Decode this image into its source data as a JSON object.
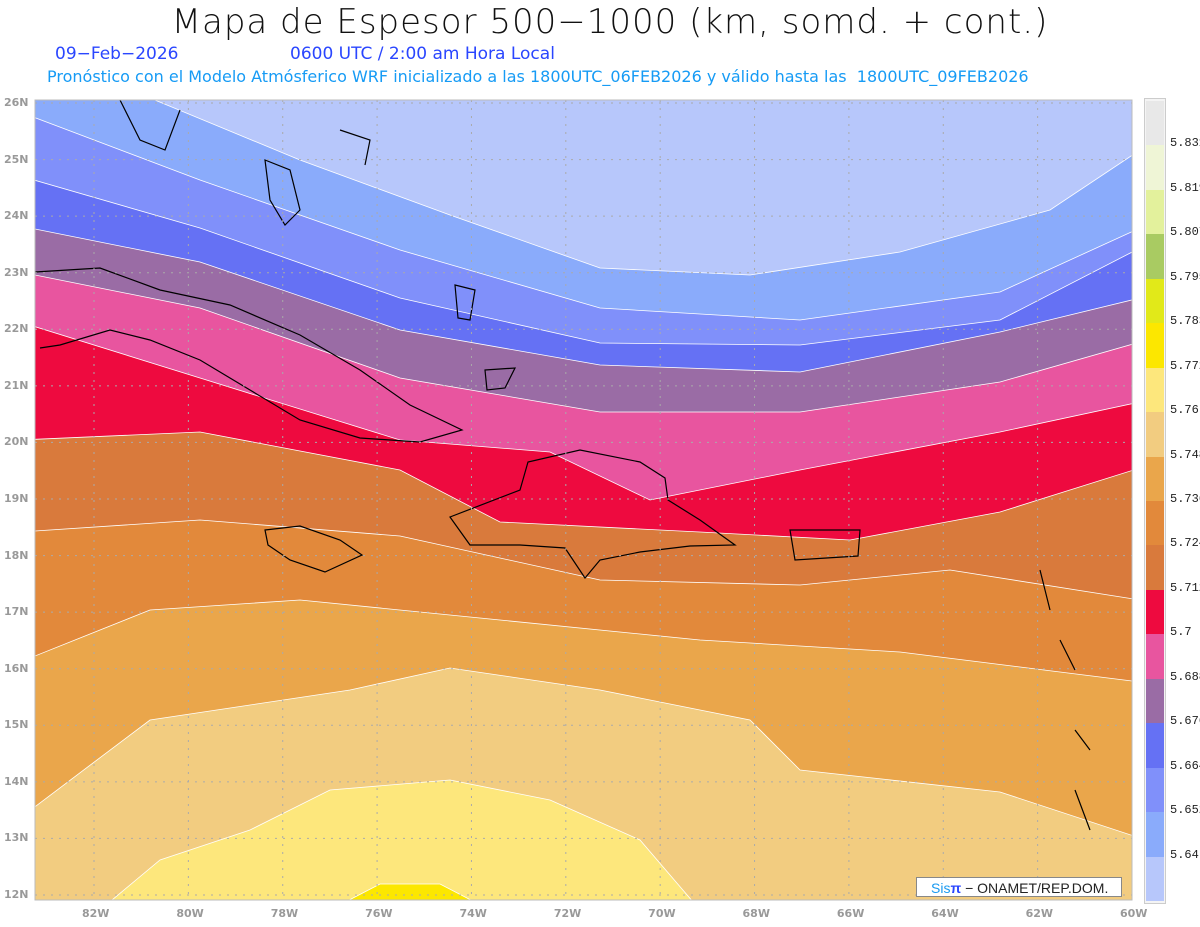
{
  "header": {
    "title": "Mapa de Espesor 500−1000 (km, somd. + cont.)",
    "date": "09−Feb−2026",
    "time": "0600 UTC / 2:00 am Hora Local",
    "forecast": "Pronóstico con el Modelo Atmósferico WRF inicializado a las 1800UTC_06FEB2026 y válido hasta las  1800UTC_09FEB2026"
  },
  "axes": {
    "lat_labels": [
      "26N",
      "25N",
      "24N",
      "23N",
      "22N",
      "21N",
      "20N",
      "19N",
      "18N",
      "17N",
      "16N",
      "15N",
      "14N",
      "13N",
      "12N"
    ],
    "lon_labels": [
      "82W",
      "80W",
      "78W",
      "76W",
      "74W",
      "72W",
      "70W",
      "68W",
      "66W",
      "64W",
      "62W",
      "60W"
    ]
  },
  "colorbar": {
    "colors": [
      "#e8e8e8",
      "#eff5d6",
      "#e3f19c",
      "#a9cb62",
      "#e1e919",
      "#fce700",
      "#fde77c",
      "#f2cc80",
      "#eaa64b",
      "#e2893b",
      "#d97a3c",
      "#ee0a3f",
      "#e8559f",
      "#9a6ca5",
      "#6571f4",
      "#8090fa",
      "#8aabfb",
      "#b7c7fb"
    ],
    "levels": [
      "5.831",
      "5.819",
      "5.807",
      "5.795",
      "5.783",
      "5.772",
      "5.76",
      "5.748",
      "5.736",
      "5.724",
      "5.712",
      "5.7",
      "5.688",
      "5.676",
      "5.664",
      "5.652",
      "5.64"
    ]
  },
  "logo": {
    "sis": "Sis",
    "pi": "π",
    "org": "− ONAMET/REP.DOM."
  }
}
